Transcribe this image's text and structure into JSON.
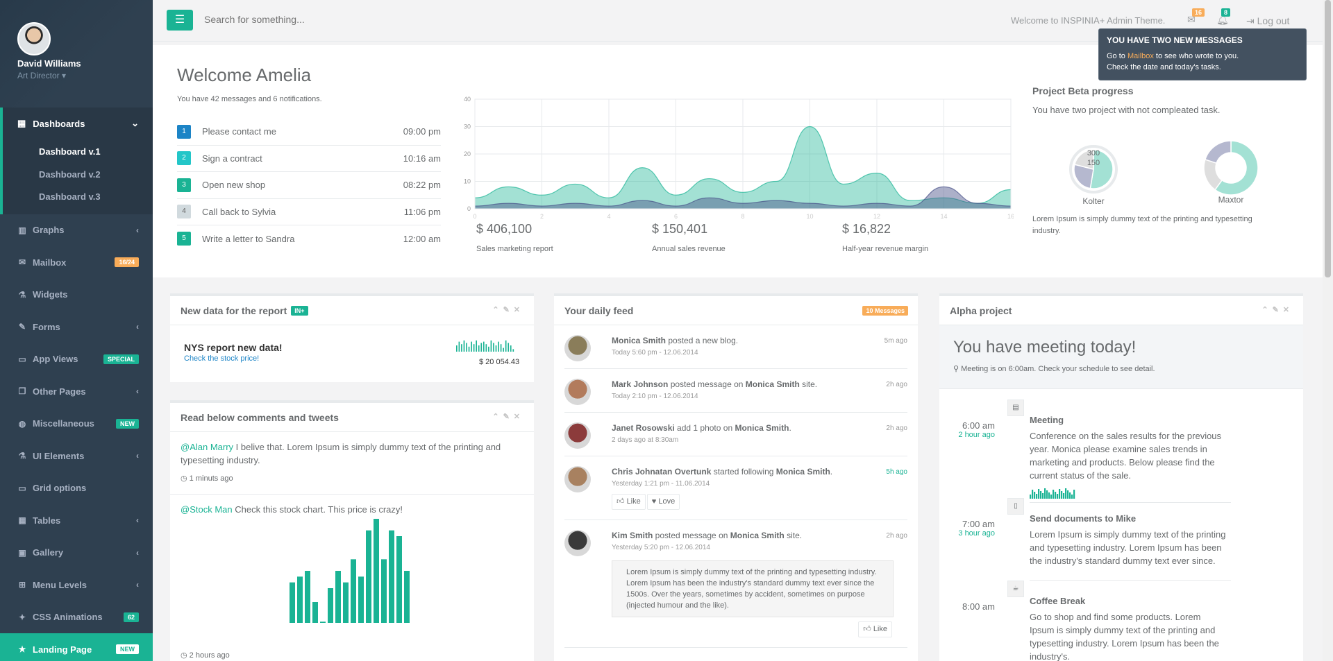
{
  "profile": {
    "name": "David Williams",
    "role": "Art Director"
  },
  "sidebar": {
    "active": {
      "label": "Dashboards",
      "sub": [
        "Dashboard v.1",
        "Dashboard v.2",
        "Dashboard v.3"
      ]
    },
    "items": [
      {
        "label": "Graphs",
        "icon": "bar-chart-icon",
        "chev": true
      },
      {
        "label": "Mailbox",
        "icon": "envelope-icon",
        "badge": "16/24",
        "badge_color": "#f8ac59"
      },
      {
        "label": "Widgets",
        "icon": "flask-icon"
      },
      {
        "label": "Forms",
        "icon": "edit-icon",
        "chev": true
      },
      {
        "label": "App Views",
        "icon": "desktop-icon",
        "badge": "SPECIAL",
        "badge_color": "#1ab394"
      },
      {
        "label": "Other Pages",
        "icon": "files-icon",
        "chev": true
      },
      {
        "label": "Miscellaneous",
        "icon": "globe-icon",
        "badge": "NEW",
        "badge_color": "#1ab394"
      },
      {
        "label": "UI Elements",
        "icon": "flask-icon",
        "chev": true
      },
      {
        "label": "Grid options",
        "icon": "laptop-icon"
      },
      {
        "label": "Tables",
        "icon": "table-icon",
        "chev": true
      },
      {
        "label": "Gallery",
        "icon": "picture-icon",
        "chev": true
      },
      {
        "label": "Menu Levels",
        "icon": "sitemap-icon",
        "chev": true
      },
      {
        "label": "CSS Animations",
        "icon": "magic-icon",
        "badge": "62",
        "badge_color": "#1ab394"
      },
      {
        "label": "Landing Page",
        "icon": "star-icon",
        "badge": "NEW",
        "badge_color": "#fff",
        "landing": true
      }
    ]
  },
  "topbar": {
    "search_placeholder": "Search for something...",
    "welcome": "Welcome to INSPINIA+ Admin Theme.",
    "mail_count": "16",
    "bell_count": "8",
    "logout": "Log out"
  },
  "tooltip": {
    "title": "YOU HAVE TWO NEW MESSAGES",
    "line1_pre": "Go to ",
    "line1_link": "Mailbox",
    "line1_post": " to see who wrote to you.",
    "line2": "Check the date and today's tasks."
  },
  "welcome": {
    "heading": "Welcome Amelia",
    "sub": "You have 42 messages and 6 notifications.",
    "todos": [
      {
        "n": "1",
        "text": "Please contact me",
        "time": "09:00 pm",
        "color": "#1c84c6"
      },
      {
        "n": "2",
        "text": "Sign a contract",
        "time": "10:16 am",
        "color": "#23c6c8"
      },
      {
        "n": "3",
        "text": "Open new shop",
        "time": "08:22 pm",
        "color": "#1ab394"
      },
      {
        "n": "4",
        "text": "Call back to Sylvia",
        "time": "11:06 pm",
        "color": "#d1dade"
      },
      {
        "n": "5",
        "text": "Write a letter to Sandra",
        "time": "12:00 am",
        "color": "#1ab394"
      }
    ],
    "stats": [
      {
        "value": "$ 406,100",
        "label": "Sales marketing report"
      },
      {
        "value": "$ 150,401",
        "label": "Annual sales revenue"
      },
      {
        "value": "$ 16,822",
        "label": "Half-year revenue margin"
      }
    ]
  },
  "chart_data": {
    "type": "area",
    "x": [
      0,
      1,
      2,
      3,
      4,
      5,
      6,
      7,
      8,
      9,
      10,
      11,
      12,
      13,
      14,
      15,
      16
    ],
    "xticks": [
      0,
      2,
      4,
      6,
      8,
      10,
      12,
      14,
      16
    ],
    "yticks": [
      0,
      10,
      20,
      30,
      40
    ],
    "ylim": [
      0,
      40
    ],
    "series": [
      {
        "values": [
          4,
          8,
          5,
          9,
          4,
          15,
          5,
          11,
          6,
          10,
          30,
          9,
          13,
          3,
          4,
          2,
          7
        ],
        "color": "#1ab394"
      },
      {
        "values": [
          1,
          2,
          1,
          2,
          1,
          3,
          1,
          4,
          2,
          3,
          2,
          1,
          2,
          1,
          8,
          2,
          1
        ],
        "color": "#464f88"
      }
    ]
  },
  "project": {
    "heading": "Project Beta progress",
    "sub": "You have two project with not compleated task.",
    "pie1": {
      "label": "Kolter",
      "outer": "300",
      "inner": "150",
      "values": [
        300,
        150,
        120
      ]
    },
    "pie2": {
      "label": "Maxtor",
      "values": [
        60,
        20,
        20
      ]
    },
    "lorem": "Lorem Ipsum is simply dummy text of the printing and typesetting industry."
  },
  "report_panel": {
    "title": "New data for the report",
    "label": "IN+",
    "heading": "NYS report new data!",
    "link": "Check the stock price!",
    "value": "$ 20 054.43",
    "bars": [
      5,
      8,
      6,
      9,
      7,
      4,
      8,
      6,
      9,
      5,
      7,
      8,
      6,
      4,
      9,
      7,
      5,
      8,
      6,
      3,
      9,
      7,
      5,
      2
    ]
  },
  "comments_panel": {
    "title": "Read below comments and tweets",
    "comments": [
      {
        "who": "@Alan Marry",
        "text": " I belive that. Lorem Ipsum is simply dummy text of the printing and typesetting industry.",
        "ago": "1 minuts ago"
      },
      {
        "who": "@Stock Man",
        "text": " Check this stock chart. This price is crazy!",
        "ago": "2 hours ago"
      }
    ],
    "stock_bars": [
      35,
      40,
      45,
      18,
      1,
      30,
      45,
      35,
      55,
      40,
      80,
      90,
      55,
      80,
      75,
      45
    ]
  },
  "feed_panel": {
    "title": "Your daily feed",
    "badge": "10 Messages",
    "items": [
      {
        "who": "Monica Smith",
        "action": " posted a new blog.",
        "target": "",
        "target_post": "",
        "when": "Today 5:60 pm - 12.06.2014",
        "ago": "5m ago",
        "av": "#8a7d5a"
      },
      {
        "who": "Mark Johnson",
        "action": " posted message on ",
        "target": "Monica Smith",
        "target_post": " site.",
        "when": "Today 2:10 pm - 12.06.2014",
        "ago": "2h ago",
        "av": "#b27b5c"
      },
      {
        "who": "Janet Rosowski",
        "action": " add 1 photo on ",
        "target": "Monica Smith",
        "target_post": ".",
        "when": "2 days ago at 8:30am",
        "ago": "2h ago",
        "av": "#8c3b3b"
      },
      {
        "who": "Chris Johnatan Overtunk",
        "action": " started following ",
        "target": "Monica Smith",
        "target_post": ".",
        "when": "Yesterday 1:21 pm - 11.06.2014",
        "ago": "5h ago",
        "av": "#a88160",
        "buttons": [
          "Like",
          "Love"
        ]
      },
      {
        "who": "Kim Smith",
        "action": " posted message on ",
        "target": "Monica Smith",
        "target_post": " site.",
        "when": "Yesterday 5:20 pm - 12.06.2014",
        "ago": "2h ago",
        "av": "#3a3a3a",
        "well": "Lorem Ipsum is simply dummy text of the printing and typesetting industry. Lorem Ipsum has been the industry's standard dummy text ever since the 1500s. Over the years, sometimes by accident, sometimes on purpose (injected humour and the like).",
        "like": "Like"
      }
    ]
  },
  "alpha_panel": {
    "title": "Alpha project",
    "meeting": "You have meeting today!",
    "meeting_sub": "Meeting is on 6:00am. Check your schedule to see detail.",
    "timeline": [
      {
        "time": "6:00 am",
        "ago": "2 hour ago",
        "title": "Meeting",
        "text": "Conference on the sales results for the previous year. Monica please examine sales trends in marketing and products. Below please find the current status of the sale.",
        "icon": "briefcase-icon"
      },
      {
        "time": "7:00 am",
        "ago": "3 hour ago",
        "title": "Send documents to Mike",
        "text": "Lorem Ipsum is simply dummy text of the printing and typesetting industry. Lorem Ipsum has been the industry's standard dummy text ever since.",
        "icon": "file-icon"
      },
      {
        "time": "8:00 am",
        "ago": "",
        "title": "Coffee Break",
        "text": "Go to shop and find some products. Lorem Ipsum is simply dummy text of the printing and typesetting industry. Lorem Ipsum has been the industry's.",
        "icon": "coffee-icon"
      }
    ]
  }
}
